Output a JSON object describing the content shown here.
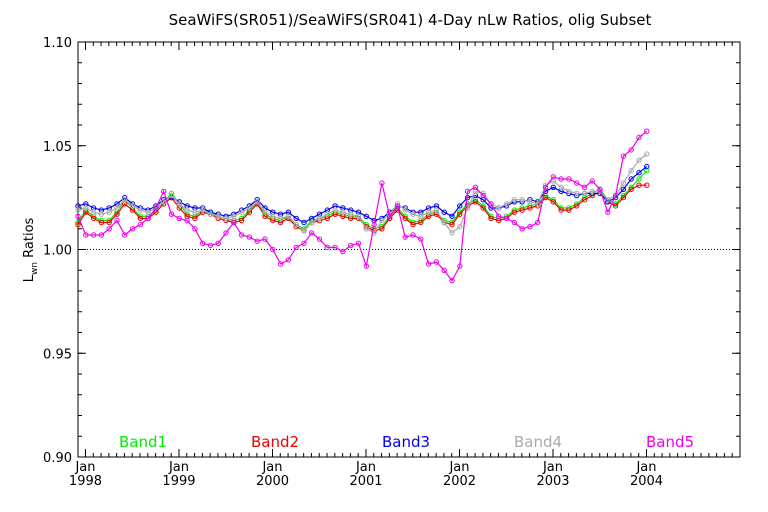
{
  "chart_data": {
    "type": "line",
    "title": "SeaWiFS(SR051)/SeaWiFS(SR041) 4-Day nLw Ratios, olig Subset",
    "ylabel_main": "L",
    "ylabel_sub": "wn",
    "ylabel_rest": " Ratios",
    "ylim": [
      0.9,
      1.1
    ],
    "yticks": [
      "0.90",
      "0.95",
      "1.00",
      "1.05",
      "1.10"
    ],
    "xlim": [
      1997.92,
      2005.0
    ],
    "xticks": [
      {
        "month": "Jan",
        "year": "1998",
        "x": 1998.0
      },
      {
        "month": "Jan",
        "year": "1999",
        "x": 1999.0
      },
      {
        "month": "Jan",
        "year": "2000",
        "x": 2000.0
      },
      {
        "month": "Jan",
        "year": "2001",
        "x": 2001.0
      },
      {
        "month": "Jan",
        "year": "2002",
        "x": 2002.0
      },
      {
        "month": "Jan",
        "year": "2003",
        "x": 2003.0
      },
      {
        "month": "Jan",
        "year": "2004",
        "x": 2004.0
      }
    ],
    "reference_line": 1.0,
    "x_step": 0.08333,
    "x_start": 1997.92,
    "series": [
      {
        "name": "Band1",
        "color": "#00ee00",
        "values": [
          1.013,
          1.019,
          1.016,
          1.014,
          1.014,
          1.018,
          1.024,
          1.02,
          1.016,
          1.016,
          1.019,
          1.023,
          1.027,
          1.022,
          1.017,
          1.016,
          1.019,
          1.018,
          1.016,
          1.015,
          1.014,
          1.015,
          1.019,
          1.023,
          1.017,
          1.015,
          1.014,
          1.016,
          1.012,
          1.01,
          1.014,
          1.015,
          1.016,
          1.018,
          1.017,
          1.016,
          1.016,
          1.012,
          1.01,
          1.011,
          1.016,
          1.02,
          1.016,
          1.013,
          1.014,
          1.017,
          1.018,
          1.014,
          1.013,
          1.018,
          1.022,
          1.024,
          1.021,
          1.016,
          1.015,
          1.016,
          1.019,
          1.02,
          1.021,
          1.022,
          1.026,
          1.024,
          1.02,
          1.02,
          1.022,
          1.025,
          1.027,
          1.029,
          1.024,
          1.022,
          1.026,
          1.03,
          1.034,
          1.038
        ]
      },
      {
        "name": "Band2",
        "color": "#ee0000",
        "values": [
          1.012,
          1.018,
          1.015,
          1.013,
          1.013,
          1.017,
          1.022,
          1.019,
          1.015,
          1.015,
          1.018,
          1.022,
          1.025,
          1.02,
          1.016,
          1.015,
          1.018,
          1.017,
          1.015,
          1.014,
          1.013,
          1.014,
          1.018,
          1.022,
          1.016,
          1.014,
          1.013,
          1.015,
          1.011,
          1.009,
          1.013,
          1.014,
          1.015,
          1.017,
          1.016,
          1.015,
          1.015,
          1.011,
          1.009,
          1.01,
          1.015,
          1.019,
          1.015,
          1.012,
          1.013,
          1.016,
          1.017,
          1.013,
          1.012,
          1.017,
          1.021,
          1.023,
          1.02,
          1.015,
          1.014,
          1.015,
          1.018,
          1.019,
          1.02,
          1.021,
          1.025,
          1.023,
          1.019,
          1.019,
          1.021,
          1.024,
          1.026,
          1.028,
          1.023,
          1.021,
          1.025,
          1.029,
          1.031,
          1.031
        ]
      },
      {
        "name": "Band3",
        "color": "#0000ee",
        "values": [
          1.021,
          1.022,
          1.02,
          1.019,
          1.02,
          1.022,
          1.025,
          1.022,
          1.02,
          1.019,
          1.021,
          1.024,
          1.025,
          1.023,
          1.021,
          1.02,
          1.02,
          1.018,
          1.017,
          1.016,
          1.017,
          1.019,
          1.021,
          1.024,
          1.02,
          1.018,
          1.017,
          1.018,
          1.015,
          1.013,
          1.015,
          1.017,
          1.019,
          1.021,
          1.02,
          1.019,
          1.018,
          1.016,
          1.014,
          1.015,
          1.018,
          1.021,
          1.02,
          1.018,
          1.018,
          1.02,
          1.021,
          1.018,
          1.016,
          1.021,
          1.025,
          1.026,
          1.024,
          1.02,
          1.02,
          1.021,
          1.023,
          1.023,
          1.024,
          1.023,
          1.028,
          1.03,
          1.028,
          1.027,
          1.026,
          1.027,
          1.027,
          1.027,
          1.023,
          1.025,
          1.029,
          1.034,
          1.037,
          1.04
        ]
      },
      {
        "name": "Band4",
        "color": "#aaaaaa",
        "values": [
          1.019,
          1.02,
          1.018,
          1.017,
          1.018,
          1.02,
          1.024,
          1.021,
          1.019,
          1.018,
          1.02,
          1.023,
          1.026,
          1.022,
          1.019,
          1.018,
          1.019,
          1.017,
          1.016,
          1.015,
          1.016,
          1.018,
          1.02,
          1.023,
          1.018,
          1.016,
          1.015,
          1.016,
          1.012,
          1.009,
          1.013,
          1.015,
          1.017,
          1.019,
          1.018,
          1.017,
          1.016,
          1.01,
          1.008,
          1.014,
          1.017,
          1.022,
          1.019,
          1.017,
          1.016,
          1.018,
          1.019,
          1.013,
          1.008,
          1.011,
          1.02,
          1.028,
          1.027,
          1.022,
          1.02,
          1.022,
          1.024,
          1.024,
          1.023,
          1.022,
          1.031,
          1.033,
          1.03,
          1.028,
          1.027,
          1.027,
          1.028,
          1.028,
          1.024,
          1.026,
          1.032,
          1.038,
          1.043,
          1.046
        ]
      },
      {
        "name": "Band5",
        "color": "#ee00ee",
        "values": [
          1.016,
          1.007,
          1.007,
          1.007,
          1.01,
          1.014,
          1.007,
          1.01,
          1.012,
          1.015,
          1.02,
          1.028,
          1.017,
          1.015,
          1.014,
          1.01,
          1.003,
          1.002,
          1.003,
          1.008,
          1.013,
          1.007,
          1.006,
          1.004,
          1.005,
          1.0,
          0.993,
          0.995,
          1.001,
          1.003,
          1.008,
          1.005,
          1.001,
          1.001,
          0.999,
          1.002,
          1.003,
          0.992,
          1.012,
          1.032,
          1.016,
          1.021,
          1.006,
          1.007,
          1.005,
          0.993,
          0.994,
          0.99,
          0.985,
          0.992,
          1.028,
          1.03,
          1.026,
          1.022,
          1.016,
          1.015,
          1.013,
          1.01,
          1.011,
          1.013,
          1.03,
          1.035,
          1.034,
          1.034,
          1.032,
          1.03,
          1.033,
          1.029,
          1.018,
          1.026,
          1.045,
          1.048,
          1.054,
          1.057
        ]
      }
    ]
  }
}
